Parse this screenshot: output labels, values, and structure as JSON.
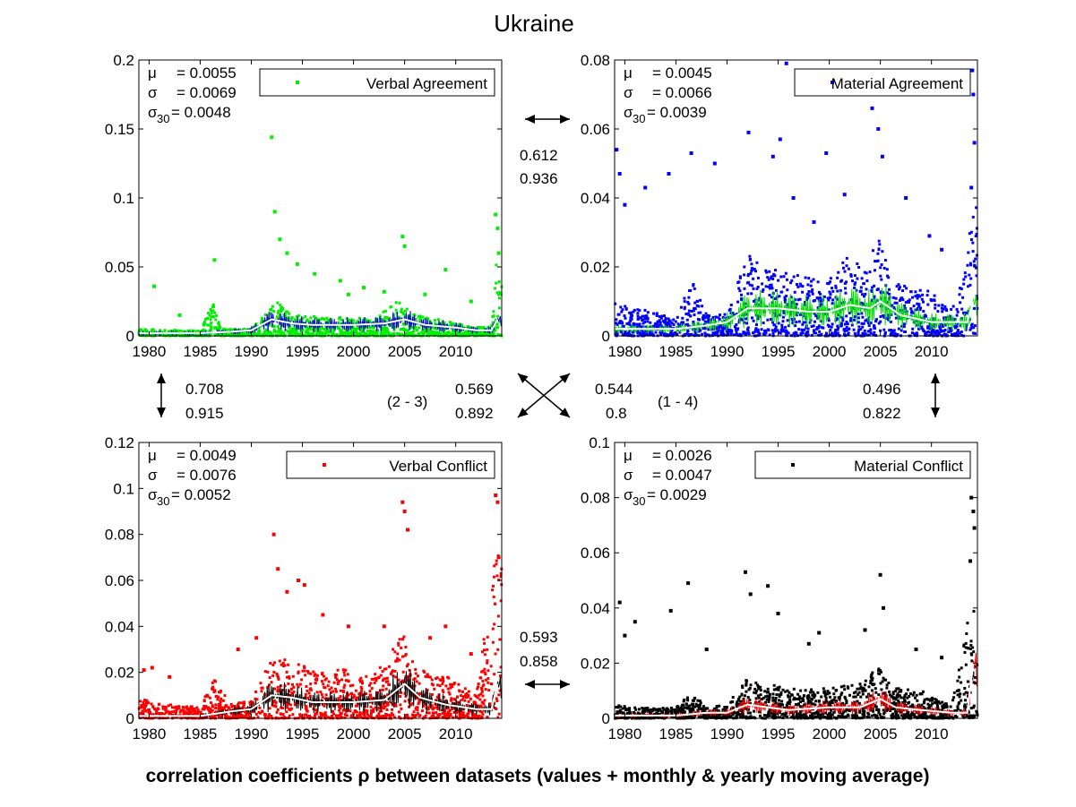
{
  "title": "Ukraine",
  "caption": "correlation coefficients ρ between datasets (values + monthly & yearly moving average)",
  "colors": {
    "verbal_agreement": "#00ee00",
    "material_agreement": "#0000ff",
    "verbal_conflict": "#ff0000",
    "material_conflict": "#000000",
    "moving_average": "#ffffff",
    "background": "#ffffff"
  },
  "correlations": [
    {
      "pair": "top",
      "value": "0.612",
      "monthly": "0.936"
    },
    {
      "pair": "left",
      "value": "0.708",
      "monthly": "0.915"
    },
    {
      "pair": "diag-2-3",
      "label": "(2 - 3)",
      "value": "0.569",
      "monthly": "0.892"
    },
    {
      "pair": "diag-1-4",
      "label": "(1 - 4)",
      "value": "0.544",
      "monthly": "0.8"
    },
    {
      "pair": "right",
      "value": "0.496",
      "monthly": "0.822"
    },
    {
      "pair": "bottom",
      "value": "0.593",
      "monthly": "0.858"
    }
  ],
  "chart_data": [
    {
      "type": "scatter",
      "series": [
        {
          "name": "Verbal Agreement"
        }
      ],
      "ylim": [
        0,
        0.2
      ],
      "xlim": [
        1979,
        2014.5
      ],
      "yticks": [
        "0",
        "0.05",
        "0.1",
        "0.15",
        "0.2"
      ],
      "xticks": [
        "1980",
        "1985",
        "1990",
        "1995",
        "2000",
        "2005",
        "2010"
      ],
      "stats": {
        "mu": "= 0.0055",
        "sigma": "= 0.0069",
        "sigma30": "= 0.0048"
      },
      "baseline": [
        [
          1979,
          0.004
        ],
        [
          1985,
          0.003
        ],
        [
          1986.3,
          0.02
        ],
        [
          1987,
          0.004
        ],
        [
          1990,
          0.004
        ],
        [
          1991.8,
          0.015
        ],
        [
          1992.5,
          0.02
        ],
        [
          1994,
          0.012
        ],
        [
          1998,
          0.011
        ],
        [
          2002,
          0.01
        ],
        [
          2004.8,
          0.022
        ],
        [
          2005.5,
          0.013
        ],
        [
          2008,
          0.01
        ],
        [
          2012,
          0.005
        ],
        [
          2013.5,
          0.006
        ],
        [
          2014,
          0.045
        ],
        [
          2014.3,
          0.03
        ]
      ],
      "spikes": [
        [
          1986.4,
          0.055
        ],
        [
          1992.0,
          0.144
        ],
        [
          1992.3,
          0.09
        ],
        [
          1992.8,
          0.07
        ],
        [
          1993.5,
          0.06
        ],
        [
          1994.5,
          0.052
        ],
        [
          1996.2,
          0.045
        ],
        [
          1998.7,
          0.04
        ],
        [
          2004.8,
          0.072
        ],
        [
          2005.0,
          0.065
        ],
        [
          2009.0,
          0.048
        ],
        [
          2013.9,
          0.088
        ],
        [
          2014.1,
          0.078
        ],
        [
          2014.2,
          0.06
        ],
        [
          1980.5,
          0.036
        ],
        [
          1983.0,
          0.015
        ],
        [
          1999.5,
          0.03
        ],
        [
          2001.0,
          0.035
        ],
        [
          2003.0,
          0.032
        ],
        [
          2007.0,
          0.03
        ],
        [
          2011.5,
          0.025
        ]
      ],
      "ma": [
        [
          1979,
          0.002
        ],
        [
          1985,
          0.002
        ],
        [
          1988,
          0.003
        ],
        [
          1990,
          0.004
        ],
        [
          1992,
          0.012
        ],
        [
          1994,
          0.009
        ],
        [
          1996,
          0.008
        ],
        [
          2000,
          0.008
        ],
        [
          2003,
          0.009
        ],
        [
          2005,
          0.012
        ],
        [
          2007,
          0.008
        ],
        [
          2010,
          0.006
        ],
        [
          2012,
          0.004
        ],
        [
          2013.5,
          0.004
        ],
        [
          2014.1,
          0.012
        ]
      ]
    },
    {
      "type": "scatter",
      "series": [
        {
          "name": "Material Agreement"
        }
      ],
      "ylim": [
        0,
        0.08
      ],
      "xlim": [
        1979,
        2014.5
      ],
      "yticks": [
        "0",
        "0.02",
        "0.04",
        "0.06",
        "0.08"
      ],
      "xticks": [
        "1980",
        "1985",
        "1990",
        "1995",
        "2000",
        "2005",
        "2010"
      ],
      "stats": {
        "mu": "= 0.0045",
        "sigma": "= 0.0066",
        "sigma30": "= 0.0039"
      },
      "baseline": [
        [
          1979,
          0.008
        ],
        [
          1985,
          0.004
        ],
        [
          1986.5,
          0.014
        ],
        [
          1988,
          0.005
        ],
        [
          1990,
          0.005
        ],
        [
          1992,
          0.02
        ],
        [
          1994,
          0.016
        ],
        [
          1997,
          0.014
        ],
        [
          2000,
          0.013
        ],
        [
          2002,
          0.02
        ],
        [
          2003.5,
          0.015
        ],
        [
          2005,
          0.025
        ],
        [
          2006,
          0.012
        ],
        [
          2009,
          0.012
        ],
        [
          2012,
          0.006
        ],
        [
          2014,
          0.03
        ]
      ],
      "spikes": [
        [
          1979.2,
          0.054
        ],
        [
          1979.5,
          0.047
        ],
        [
          1980,
          0.038
        ],
        [
          1982,
          0.043
        ],
        [
          1984.3,
          0.047
        ],
        [
          1986.5,
          0.053
        ],
        [
          1988.8,
          0.05
        ],
        [
          1992.1,
          0.059
        ],
        [
          1994.5,
          0.052
        ],
        [
          1995.2,
          0.057
        ],
        [
          1995.8,
          0.079
        ],
        [
          1999.7,
          0.053
        ],
        [
          2001.5,
          0.041
        ],
        [
          2004.2,
          0.066
        ],
        [
          2004.8,
          0.06
        ],
        [
          2005.2,
          0.052
        ],
        [
          2007.5,
          0.04
        ],
        [
          2014.0,
          0.077
        ],
        [
          2014.1,
          0.07
        ],
        [
          2014.2,
          0.056
        ],
        [
          2013.9,
          0.043
        ],
        [
          1998.5,
          0.033
        ],
        [
          1996.5,
          0.04
        ],
        [
          2009.8,
          0.029
        ],
        [
          2011.0,
          0.025
        ]
      ],
      "ma": [
        [
          1979,
          0.002
        ],
        [
          1985,
          0.002
        ],
        [
          1988,
          0.003
        ],
        [
          1990,
          0.004
        ],
        [
          1992,
          0.008
        ],
        [
          1995,
          0.008
        ],
        [
          1998,
          0.007
        ],
        [
          2000,
          0.007
        ],
        [
          2002,
          0.009
        ],
        [
          2004,
          0.008
        ],
        [
          2005,
          0.01
        ],
        [
          2007,
          0.006
        ],
        [
          2010,
          0.004
        ],
        [
          2013.5,
          0.004
        ],
        [
          2014.1,
          0.01
        ]
      ]
    },
    {
      "type": "scatter",
      "series": [
        {
          "name": "Verbal Conflict"
        }
      ],
      "ylim": [
        0,
        0.12
      ],
      "xlim": [
        1979,
        2014.5
      ],
      "yticks": [
        "0",
        "0.02",
        "0.04",
        "0.06",
        "0.08",
        "0.1",
        "0.12"
      ],
      "xticks": [
        "1980",
        "1985",
        "1990",
        "1995",
        "2000",
        "2005",
        "2010"
      ],
      "stats": {
        "mu": "= 0.0049",
        "sigma": "= 0.0076",
        "sigma30": "= 0.0052"
      },
      "baseline": [
        [
          1979,
          0.007
        ],
        [
          1981,
          0.005
        ],
        [
          1985,
          0.004
        ],
        [
          1986.3,
          0.014
        ],
        [
          1988,
          0.005
        ],
        [
          1990,
          0.006
        ],
        [
          1992,
          0.022
        ],
        [
          1994,
          0.02
        ],
        [
          1996,
          0.017
        ],
        [
          1999,
          0.017
        ],
        [
          2002,
          0.015
        ],
        [
          2005,
          0.03
        ],
        [
          2006,
          0.018
        ],
        [
          2009,
          0.015
        ],
        [
          2012,
          0.008
        ],
        [
          2014,
          0.06
        ]
      ],
      "spikes": [
        [
          1979.5,
          0.021
        ],
        [
          1980.3,
          0.022
        ],
        [
          1982.0,
          0.018
        ],
        [
          1986.4,
          0.012
        ],
        [
          1992.2,
          0.08
        ],
        [
          1992.6,
          0.065
        ],
        [
          1993.5,
          0.055
        ],
        [
          1994.6,
          0.06
        ],
        [
          1995.2,
          0.058
        ],
        [
          1997.0,
          0.045
        ],
        [
          1999.5,
          0.04
        ],
        [
          2003.0,
          0.04
        ],
        [
          2004.8,
          0.094
        ],
        [
          2005.0,
          0.09
        ],
        [
          2005.3,
          0.082
        ],
        [
          2007.5,
          0.035
        ],
        [
          2009.0,
          0.04
        ],
        [
          2013.9,
          0.097
        ],
        [
          2014.1,
          0.094
        ],
        [
          2014.2,
          0.07
        ],
        [
          2011.5,
          0.028
        ],
        [
          1988.7,
          0.03
        ],
        [
          1990.5,
          0.035
        ]
      ],
      "ma": [
        [
          1979,
          0.001
        ],
        [
          1985,
          0.001
        ],
        [
          1988,
          0.003
        ],
        [
          1990,
          0.004
        ],
        [
          1992,
          0.01
        ],
        [
          1994,
          0.009
        ],
        [
          1996,
          0.007
        ],
        [
          2000,
          0.007
        ],
        [
          2003,
          0.008
        ],
        [
          2005,
          0.015
        ],
        [
          2006.5,
          0.009
        ],
        [
          2009,
          0.006
        ],
        [
          2012,
          0.004
        ],
        [
          2013.5,
          0.004
        ],
        [
          2014.1,
          0.015
        ]
      ]
    },
    {
      "type": "scatter",
      "series": [
        {
          "name": "Material Conflict"
        }
      ],
      "ylim": [
        0,
        0.1
      ],
      "xlim": [
        1979,
        2014.5
      ],
      "yticks": [
        "0",
        "0.02",
        "0.04",
        "0.06",
        "0.08",
        "0.1"
      ],
      "xticks": [
        "1980",
        "1985",
        "1990",
        "1995",
        "2000",
        "2005",
        "2010"
      ],
      "stats": {
        "mu": "= 0.0026",
        "sigma": "= 0.0047",
        "sigma30": "= 0.0029"
      },
      "baseline": [
        [
          1979,
          0.004
        ],
        [
          1982,
          0.003
        ],
        [
          1985,
          0.003
        ],
        [
          1986.5,
          0.008
        ],
        [
          1988,
          0.003
        ],
        [
          1990,
          0.004
        ],
        [
          1992,
          0.012
        ],
        [
          1994,
          0.01
        ],
        [
          1997,
          0.009
        ],
        [
          2000,
          0.009
        ],
        [
          2003,
          0.01
        ],
        [
          2005,
          0.016
        ],
        [
          2006,
          0.009
        ],
        [
          2009,
          0.008
        ],
        [
          2012,
          0.004
        ],
        [
          2014,
          0.035
        ]
      ],
      "spikes": [
        [
          1979.5,
          0.042
        ],
        [
          1980,
          0.03
        ],
        [
          1981.0,
          0.035
        ],
        [
          1984.5,
          0.039
        ],
        [
          1986.2,
          0.049
        ],
        [
          1991.8,
          0.053
        ],
        [
          1992.3,
          0.045
        ],
        [
          1994.0,
          0.048
        ],
        [
          1995.0,
          0.038
        ],
        [
          1999.0,
          0.031
        ],
        [
          2003.5,
          0.032
        ],
        [
          2005.0,
          0.052
        ],
        [
          2005.3,
          0.04
        ],
        [
          2013.9,
          0.08
        ],
        [
          2014.1,
          0.075
        ],
        [
          2014.2,
          0.069
        ],
        [
          2013.8,
          0.057
        ],
        [
          1988.0,
          0.025
        ],
        [
          1998.0,
          0.027
        ],
        [
          2008.5,
          0.025
        ],
        [
          2011.0,
          0.022
        ]
      ],
      "ma": [
        [
          1979,
          0.001
        ],
        [
          1985,
          0.001
        ],
        [
          1988,
          0.002
        ],
        [
          1990,
          0.002
        ],
        [
          1992,
          0.005
        ],
        [
          1994,
          0.004
        ],
        [
          1996,
          0.003
        ],
        [
          2000,
          0.004
        ],
        [
          2003,
          0.004
        ],
        [
          2005,
          0.007
        ],
        [
          2006.5,
          0.004
        ],
        [
          2009,
          0.003
        ],
        [
          2012,
          0.002
        ],
        [
          2013.5,
          0.002
        ],
        [
          2014.1,
          0.02
        ]
      ]
    }
  ]
}
